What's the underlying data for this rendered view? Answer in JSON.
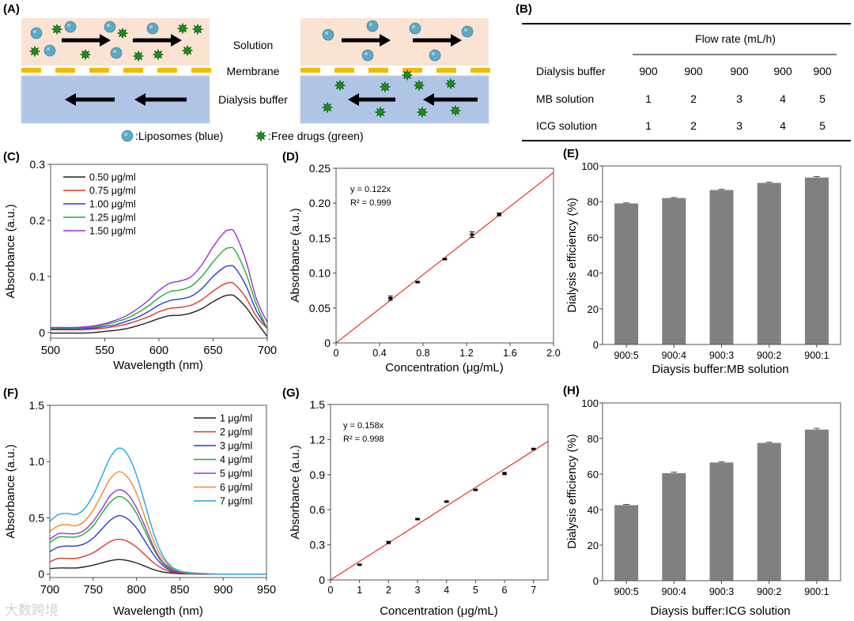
{
  "panel_labels": {
    "A": "(A)",
    "B": "(B)",
    "C": "(C)",
    "D": "(D)",
    "E": "(E)",
    "F": "(F)",
    "G": "(G)",
    "H": "(H)"
  },
  "schematic": {
    "solution_label": "Solution",
    "membrane_label": "Membrane",
    "buffer_label": "Dialysis buffer",
    "legend_liposomes": ":Liposomes (blue)",
    "legend_drugs": ":Free drugs (green)",
    "colors": {
      "solution": "#fbe3d3",
      "buffer": "#b0c4e6",
      "membrane": "#f5b800",
      "liposome": "#5ea8c4",
      "drug": "#1f8a1f"
    }
  },
  "table": {
    "header": "Flow rate (mL/h)",
    "rows": [
      {
        "label": "Dialysis buffer",
        "values": [
          "900",
          "900",
          "900",
          "900",
          "900"
        ]
      },
      {
        "label": "MB solution",
        "values": [
          "1",
          "2",
          "3",
          "4",
          "5"
        ]
      },
      {
        "label": "ICG solution",
        "values": [
          "1",
          "2",
          "3",
          "4",
          "5"
        ]
      }
    ]
  },
  "watermark": "大数跨境",
  "chart_data": [
    {
      "panel": "C",
      "type": "line",
      "xlabel": "Wavelength (nm)",
      "ylabel": "Absorbance (a.u.)",
      "xlim": [
        500,
        700
      ],
      "ylim": [
        -0.01,
        0.3
      ],
      "xticks": [
        500,
        550,
        600,
        650,
        700
      ],
      "xtick_labels": [
        "500",
        "550",
        "600",
        "650",
        "700"
      ],
      "yticks": [
        0,
        0.1,
        0.2,
        0.3
      ],
      "ytick_labels": [
        "0",
        "0.1",
        "0.2",
        "0.3"
      ],
      "legend": "top-left",
      "x": [
        500,
        510,
        520,
        530,
        540,
        550,
        560,
        570,
        580,
        590,
        600,
        610,
        620,
        630,
        640,
        650,
        660,
        665,
        670,
        680,
        690,
        700
      ],
      "series": [
        {
          "name": "0.50 μg/ml",
          "color": "#222222",
          "values": [
            -0.001,
            -0.001,
            -0.001,
            -0.001,
            0,
            0.002,
            0.004,
            0.007,
            0.012,
            0.018,
            0.025,
            0.03,
            0.031,
            0.035,
            0.043,
            0.055,
            0.065,
            0.067,
            0.065,
            0.046,
            0.019,
            -0.007
          ]
        },
        {
          "name": "0.75 μg/ml",
          "color": "#e8302a",
          "values": [
            0.005,
            0.005,
            0.005,
            0.005,
            0.006,
            0.008,
            0.011,
            0.015,
            0.021,
            0.028,
            0.037,
            0.043,
            0.045,
            0.049,
            0.059,
            0.074,
            0.086,
            0.089,
            0.086,
            0.063,
            0.029,
            0.007
          ]
        },
        {
          "name": "1.00 μg/ml",
          "color": "#2a3ad6",
          "values": [
            0.006,
            0.006,
            0.006,
            0.007,
            0.008,
            0.011,
            0.014,
            0.02,
            0.027,
            0.037,
            0.049,
            0.057,
            0.06,
            0.065,
            0.079,
            0.1,
            0.116,
            0.119,
            0.116,
            0.085,
            0.039,
            0.008
          ]
        },
        {
          "name": "1.25 μg/ml",
          "color": "#1fae2e",
          "values": [
            0.008,
            0.008,
            0.008,
            0.009,
            0.01,
            0.014,
            0.019,
            0.025,
            0.035,
            0.047,
            0.062,
            0.073,
            0.076,
            0.083,
            0.101,
            0.126,
            0.147,
            0.151,
            0.147,
            0.107,
            0.05,
            0.007
          ]
        },
        {
          "name": "1.50 μg/ml",
          "color": "#9a32d6",
          "values": [
            0.009,
            0.009,
            0.009,
            0.01,
            0.012,
            0.016,
            0.022,
            0.03,
            0.042,
            0.057,
            0.075,
            0.088,
            0.092,
            0.1,
            0.122,
            0.153,
            0.178,
            0.183,
            0.178,
            0.13,
            0.06,
            0.018
          ]
        }
      ]
    },
    {
      "panel": "D",
      "type": "scatter",
      "xlabel": "Concentration (μg/mL)",
      "ylabel": "Absorbance (a.u.)",
      "xlim": [
        0,
        2
      ],
      "ylim": [
        0,
        0.25
      ],
      "xticks": [
        0,
        0.4,
        0.8,
        1.2,
        1.6,
        2.0
      ],
      "xtick_labels": [
        "0",
        "0.4",
        "0.8",
        "1.2",
        "1.6",
        "2.0"
      ],
      "yticks": [
        0,
        0.05,
        0.1,
        0.15,
        0.2,
        0.25
      ],
      "ytick_labels": [
        "0",
        "0.05",
        "0.10",
        "0.15",
        "0.20",
        "0.25"
      ],
      "x": [
        0.5,
        0.75,
        1.0,
        1.25,
        1.5
      ],
      "y": [
        0.064,
        0.087,
        0.12,
        0.155,
        0.184
      ],
      "yerr": [
        0.003,
        0.001,
        0.001,
        0.004,
        0.002
      ],
      "fit": {
        "slope": 0.122,
        "color": "#e8302a"
      },
      "annotations": [
        "y = 0.122x",
        "R² = 0.999"
      ]
    },
    {
      "panel": "E",
      "type": "bar",
      "xlabel": "Diaysis buffer:MB solution",
      "ylabel": "Dialysis efficiency (%)",
      "ylim": [
        0,
        100
      ],
      "yticks": [
        0,
        20,
        40,
        60,
        80,
        100
      ],
      "ytick_labels": [
        "0",
        "20",
        "40",
        "60",
        "80",
        "100"
      ],
      "categories": [
        "900:5",
        "900:4",
        "900:3",
        "900:2",
        "900:1"
      ],
      "values": [
        79,
        82,
        86.5,
        90.5,
        93.5
      ],
      "yerr": [
        0.3,
        0.3,
        0.4,
        0.4,
        0.5
      ],
      "color": "#808080"
    },
    {
      "panel": "F",
      "type": "line",
      "xlabel": "Wavelength (nm)",
      "ylabel": "Absorbance (a.u.)",
      "xlim": [
        700,
        950
      ],
      "ylim": [
        -0.03,
        1.5
      ],
      "xticks": [
        700,
        750,
        800,
        850,
        900,
        950
      ],
      "xtick_labels": [
        "700",
        "750",
        "800",
        "850",
        "900",
        "950"
      ],
      "yticks": [
        0,
        0.5,
        1.0,
        1.5
      ],
      "ytick_labels": [
        "0",
        "0.5",
        "1.0",
        "1.5"
      ],
      "legend": "top-right",
      "x": [
        700,
        710,
        720,
        730,
        740,
        750,
        760,
        770,
        780,
        790,
        800,
        810,
        820,
        830,
        840,
        850,
        860,
        880,
        900,
        950
      ],
      "series": [
        {
          "name": "1 μg/ml",
          "color": "#222222",
          "values": [
            0.05,
            0.055,
            0.055,
            0.055,
            0.065,
            0.08,
            0.1,
            0.12,
            0.13,
            0.12,
            0.1,
            0.07,
            0.04,
            0.02,
            0.01,
            0.004,
            0.002,
            0,
            0,
            0
          ]
        },
        {
          "name": "2 μg/ml",
          "color": "#e8302a",
          "values": [
            0.11,
            0.14,
            0.14,
            0.14,
            0.16,
            0.19,
            0.24,
            0.29,
            0.31,
            0.29,
            0.24,
            0.17,
            0.1,
            0.05,
            0.02,
            0.008,
            0.004,
            0.001,
            0,
            0
          ]
        },
        {
          "name": "3 μg/ml",
          "color": "#2a3ad6",
          "values": [
            0.2,
            0.24,
            0.25,
            0.25,
            0.27,
            0.32,
            0.4,
            0.48,
            0.52,
            0.49,
            0.41,
            0.29,
            0.17,
            0.08,
            0.03,
            0.014,
            0.007,
            0.002,
            0,
            0
          ]
        },
        {
          "name": "4 μg/ml",
          "color": "#1fae2e",
          "values": [
            0.28,
            0.33,
            0.33,
            0.33,
            0.36,
            0.43,
            0.54,
            0.64,
            0.69,
            0.65,
            0.54,
            0.38,
            0.22,
            0.1,
            0.04,
            0.02,
            0.009,
            0.003,
            0,
            0
          ]
        },
        {
          "name": "5 μg/ml",
          "color": "#9a32d6",
          "values": [
            0.31,
            0.36,
            0.36,
            0.36,
            0.39,
            0.47,
            0.58,
            0.7,
            0.75,
            0.71,
            0.59,
            0.42,
            0.24,
            0.11,
            0.05,
            0.02,
            0.01,
            0.003,
            0,
            0
          ]
        },
        {
          "name": "6 μg/ml",
          "color": "#f08c1e",
          "values": [
            0.38,
            0.43,
            0.44,
            0.43,
            0.47,
            0.57,
            0.71,
            0.85,
            0.91,
            0.86,
            0.72,
            0.5,
            0.29,
            0.14,
            0.06,
            0.024,
            0.012,
            0.004,
            0,
            0
          ]
        },
        {
          "name": "7 μg/ml",
          "color": "#1ea8e8",
          "values": [
            0.47,
            0.53,
            0.54,
            0.53,
            0.58,
            0.7,
            0.87,
            1.04,
            1.12,
            1.06,
            0.88,
            0.62,
            0.36,
            0.17,
            0.07,
            0.03,
            0.015,
            0.005,
            0,
            0
          ]
        }
      ]
    },
    {
      "panel": "G",
      "type": "scatter",
      "xlabel": "Concentration (μg/mL)",
      "ylabel": "Absorbance (a.u.)",
      "xlim": [
        0,
        7.5
      ],
      "ylim": [
        0,
        1.5
      ],
      "xticks": [
        0,
        1,
        2,
        3,
        4,
        5,
        6,
        7
      ],
      "xtick_labels": [
        "0",
        "1",
        "2",
        "3",
        "4",
        "5",
        "6",
        "7"
      ],
      "yticks": [
        0,
        0.3,
        0.6,
        0.9,
        1.2,
        1.5
      ],
      "ytick_labels": [
        "0",
        "0.3",
        "0.6",
        "0.9",
        "1.2",
        "1.5"
      ],
      "x": [
        1,
        2,
        3,
        4,
        5,
        6,
        7
      ],
      "y": [
        0.13,
        0.32,
        0.52,
        0.67,
        0.77,
        0.91,
        1.12
      ],
      "yerr": [
        0.005,
        0.01,
        0.005,
        0.005,
        0.005,
        0.01,
        0.005
      ],
      "fit": {
        "slope": 0.158,
        "color": "#e8302a"
      },
      "annotations": [
        "y = 0.158x",
        "R² = 0.998"
      ]
    },
    {
      "panel": "H",
      "type": "bar",
      "xlabel": "Diaysis buffer:ICG solution",
      "ylabel": "Dialysis efficiency (%)",
      "ylim": [
        0,
        100
      ],
      "yticks": [
        0,
        20,
        40,
        60,
        80,
        100
      ],
      "ytick_labels": [
        "0",
        "20",
        "40",
        "60",
        "80",
        "100"
      ],
      "categories": [
        "900:5",
        "900:4",
        "900:3",
        "900:2",
        "900:1"
      ],
      "values": [
        42.5,
        60.5,
        66.5,
        77.5,
        85
      ],
      "yerr": [
        0.4,
        0.6,
        0.4,
        0.4,
        0.7
      ],
      "color": "#808080"
    }
  ]
}
